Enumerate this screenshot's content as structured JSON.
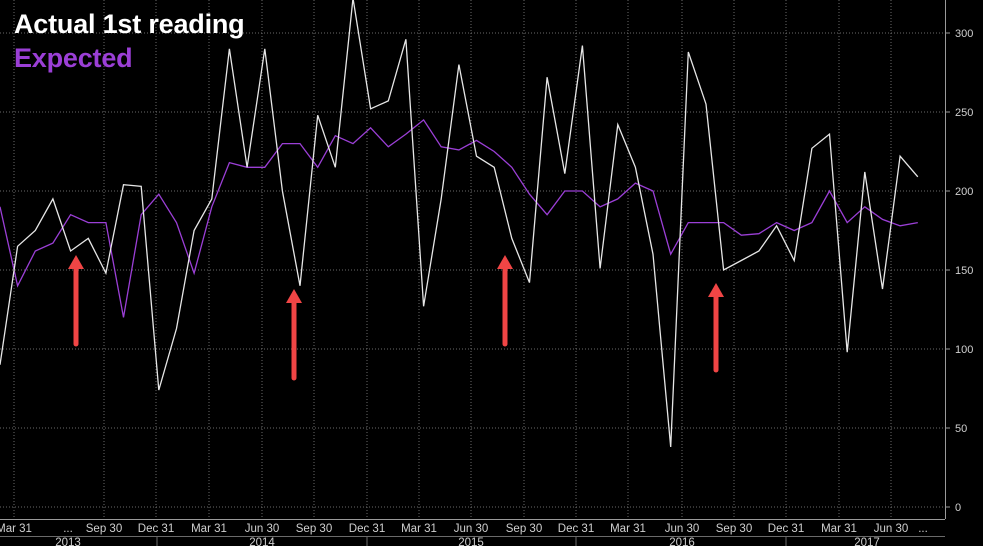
{
  "chart_data": {
    "type": "line",
    "title": "",
    "xlabel": "",
    "ylabel": "",
    "ylim": [
      0,
      320
    ],
    "yticks": [
      0,
      50,
      100,
      150,
      200,
      250,
      300
    ],
    "grid": true,
    "legend_position": "top-left",
    "colors": {
      "background": "#000000",
      "actual": "#e6e6e6",
      "expected": "#9b3fd6",
      "grid": "#6a6a6a",
      "arrows": "#f04545",
      "axis_text": "#d0d0d0"
    },
    "x_tick_labels": [
      "Mar 31",
      "...",
      "Sep 30",
      "Dec 31",
      "Mar 31",
      "Jun 30",
      "Sep 30",
      "Dec 31",
      "Mar 31",
      "Jun 30",
      "Sep 30",
      "Dec 31",
      "Mar 31",
      "Jun 30",
      "Sep 30",
      "Dec 31",
      "Mar 31",
      "Jun 30",
      "..."
    ],
    "year_labels": [
      "2013",
      "2014",
      "2015",
      "2016",
      "2017"
    ],
    "series": [
      {
        "name": "Actual 1st reading",
        "values": [
          90,
          165,
          175,
          195,
          162,
          170,
          148,
          204,
          203,
          74,
          113,
          175,
          195,
          290,
          215,
          290,
          200,
          140,
          248,
          215,
          322,
          252,
          257,
          296,
          127,
          195,
          280,
          222,
          215,
          170,
          142,
          272,
          211,
          292,
          151,
          242,
          215,
          160,
          38,
          288,
          255,
          150,
          156,
          162,
          178,
          156,
          227,
          236,
          98,
          212,
          138,
          222,
          209
        ]
      },
      {
        "name": "Expected",
        "values": [
          190,
          140,
          162,
          167,
          185,
          180,
          180,
          120,
          185,
          198,
          180,
          148,
          190,
          218,
          215,
          215,
          230,
          230,
          215,
          235,
          230,
          240,
          228,
          236,
          245,
          228,
          226,
          232,
          225,
          215,
          198,
          185,
          200,
          200,
          190,
          195,
          205,
          200,
          160,
          180,
          180,
          180,
          172,
          173,
          180,
          175,
          180,
          200,
          180,
          190,
          182,
          178,
          180
        ]
      }
    ],
    "annotations": [
      {
        "type": "up-arrow",
        "at_index": 5
      },
      {
        "type": "up-arrow",
        "at_index": 17
      },
      {
        "type": "up-arrow",
        "at_index": 29
      },
      {
        "type": "up-arrow",
        "at_index": 41
      }
    ]
  }
}
